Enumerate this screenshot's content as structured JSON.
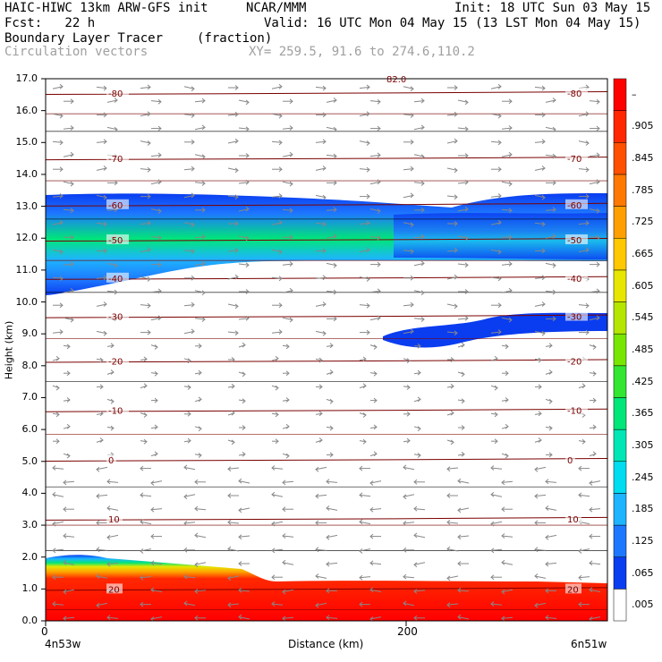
{
  "header": {
    "line1_left": "HAIC-HIWC 13km ARW-GFS init",
    "line1_mid": "NCAR/MMM",
    "line1_right": "Init: 18 UTC Sun 03 May 15",
    "line2_left": "Fcst:   22 h",
    "line2_right": "Valid: 16 UTC Mon 04 May 15 (13 LST Mon 04 May 15)",
    "line3_left": "Boundary Layer Tracer",
    "line3_mid": "(fraction)",
    "line4_left": "Circulation vectors",
    "line4_mid": "XY= 259.5, 91.6 to 274.6,110.2"
  },
  "chart_data": {
    "type": "heatmap",
    "title": "Boundary Layer Tracer (fraction)",
    "ylabel": "Height (km)",
    "xlabel": "Distance (km)",
    "x_start_label": "4n53w",
    "x_end_label": "6n51w",
    "x_ticks": [
      0,
      200
    ],
    "y_ticks": [
      0.0,
      1.0,
      2.0,
      3.0,
      4.0,
      5.0,
      6.0,
      7.0,
      8.0,
      9.0,
      10.0,
      11.0,
      12.0,
      13.0,
      14.0,
      15.0,
      16.0,
      17.0
    ],
    "xlim": [
      0,
      322
    ],
    "ylim": [
      0,
      17
    ],
    "colorbar_labels": [
      ".005",
      ".065",
      ".125",
      ".185",
      ".245",
      ".305",
      ".365",
      ".425",
      ".485",
      ".545",
      ".605",
      ".665",
      ".725",
      ".785",
      ".845",
      ".905",
      "–"
    ],
    "colorbar_colors": [
      "#ffffff",
      "#0a3cf0",
      "#1e78ff",
      "#1eb4ff",
      "#00dcf0",
      "#00e6b4",
      "#00e678",
      "#32e632",
      "#78e600",
      "#b4e600",
      "#e6e600",
      "#ffc800",
      "#ffa000",
      "#ff7800",
      "#ff5000",
      "#ff2800",
      "#ff0000"
    ],
    "temperature_contours": [
      {
        "label": "-80",
        "y": 16.55
      },
      {
        "label": "-70",
        "y": 14.5
      },
      {
        "label": "-60",
        "y": 13.05
      },
      {
        "label": "-50",
        "y": 11.95
      },
      {
        "label": "-40",
        "y": 10.75
      },
      {
        "label": "-30",
        "y": 9.55
      },
      {
        "label": "-20",
        "y": 8.15
      },
      {
        "label": "-10",
        "y": 6.6
      },
      {
        "label": "0",
        "y": 5.05
      },
      {
        "label": "10",
        "y": 3.2
      },
      {
        "label": "20",
        "y": 1.0
      }
    ],
    "contour_top_label": "82.0",
    "features": [
      {
        "name": "upper-tracer-layer",
        "y_range": [
          10.3,
          13.3
        ],
        "max_value": 0.305
      },
      {
        "name": "mid-tracer-layer",
        "x_range": [
          195,
          322
        ],
        "y_range": [
          8.5,
          9.6
        ],
        "max_value": 0.065
      },
      {
        "name": "boundary-layer",
        "y_range": [
          0,
          2.0
        ],
        "max_value": 1.0
      }
    ]
  }
}
